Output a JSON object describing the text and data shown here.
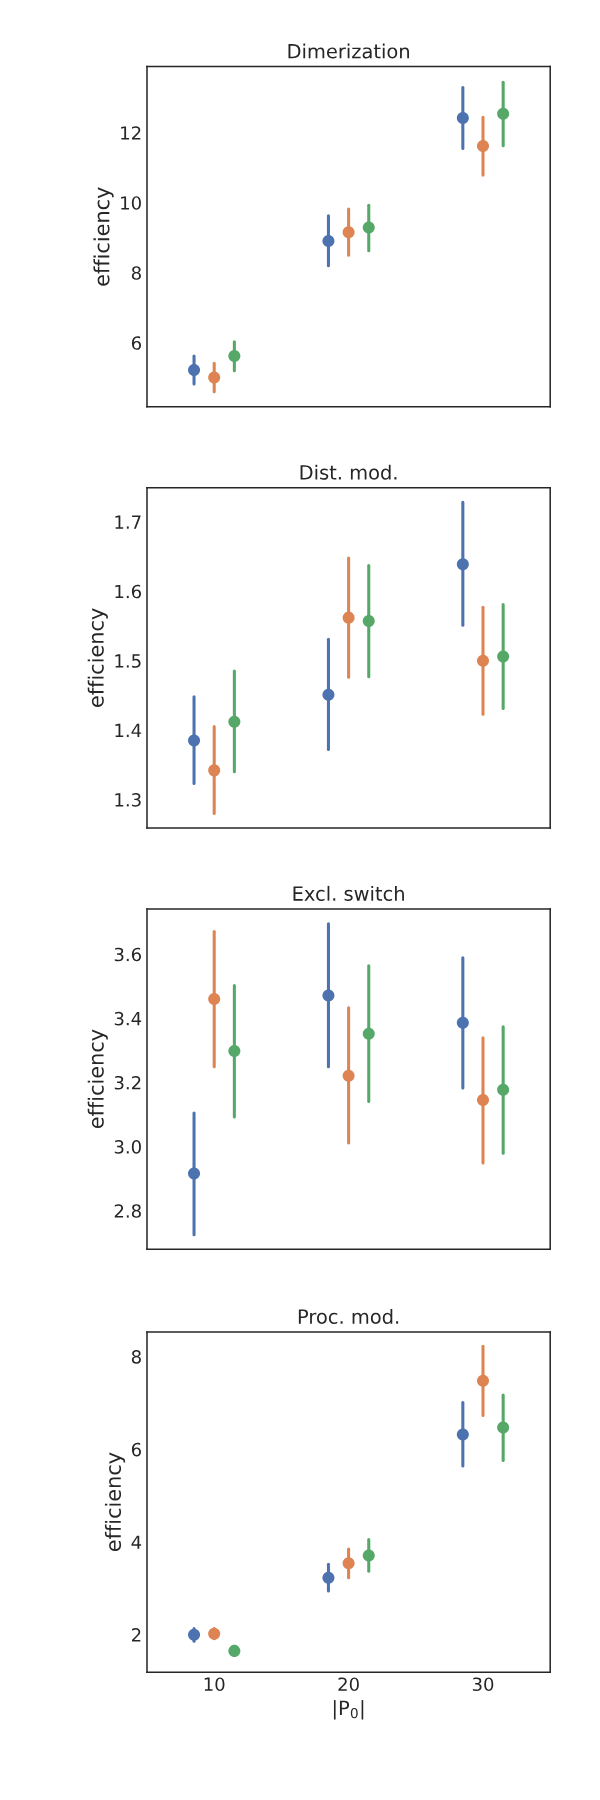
{
  "chart_data": [
    {
      "type": "scatter",
      "title": "Dimerization",
      "ylabel": "efficiency",
      "categories": [
        "10",
        "20",
        "30"
      ],
      "ylim": [
        4.17,
        13.89
      ],
      "yticks": [
        6,
        8,
        10,
        12
      ],
      "tick_labels": "y",
      "marker": "circle",
      "grid": false,
      "legend": false,
      "series": [
        {
          "color": "#4c72b0",
          "values": [
            5.22,
            8.91,
            12.42
          ],
          "errors": [
            [
              4.82,
              5.62
            ],
            [
              8.2,
              9.63
            ],
            [
              11.55,
              13.29
            ]
          ]
        },
        {
          "color": "#dd8452",
          "values": [
            5.01,
            9.16,
            11.62
          ],
          "errors": [
            [
              4.6,
              5.41
            ],
            [
              8.5,
              9.82
            ],
            [
              10.79,
              12.44
            ]
          ]
        },
        {
          "color": "#55a868",
          "values": [
            5.62,
            9.29,
            12.54
          ],
          "errors": [
            [
              5.2,
              6.03
            ],
            [
              8.63,
              9.93
            ],
            [
              11.63,
              13.44
            ]
          ]
        }
      ]
    },
    {
      "type": "scatter",
      "title": "Dist. mod.",
      "ylabel": "efficiency",
      "categories": [
        "10",
        "20",
        "30"
      ],
      "ylim": [
        1.259,
        1.749
      ],
      "yticks": [
        1.3,
        1.4,
        1.5,
        1.6,
        1.7
      ],
      "tick_labels": "y",
      "marker": "circle",
      "grid": false,
      "legend": false,
      "series": [
        {
          "color": "#4c72b0",
          "values": [
            1.385,
            1.451,
            1.639
          ],
          "errors": [
            [
              1.323,
              1.448
            ],
            [
              1.372,
              1.531
            ],
            [
              1.551,
              1.728
            ]
          ]
        },
        {
          "color": "#dd8452",
          "values": [
            1.342,
            1.562,
            1.5
          ],
          "errors": [
            [
              1.28,
              1.405
            ],
            [
              1.476,
              1.648
            ],
            [
              1.423,
              1.577
            ]
          ]
        },
        {
          "color": "#55a868",
          "values": [
            1.412,
            1.557,
            1.506
          ],
          "errors": [
            [
              1.34,
              1.485
            ],
            [
              1.477,
              1.637
            ],
            [
              1.431,
              1.581
            ]
          ]
        }
      ]
    },
    {
      "type": "scatter",
      "title": "Excl. switch",
      "ylabel": "efficiency",
      "categories": [
        "10",
        "20",
        "30"
      ],
      "ylim": [
        2.68,
        3.741
      ],
      "yticks": [
        2.8,
        {
          "value": 3.0,
          "label": "3.0"
        },
        3.2,
        3.4,
        3.6
      ],
      "tick_labels": "y",
      "marker": "circle",
      "grid": false,
      "legend": false,
      "series": [
        {
          "color": "#4c72b0",
          "values": [
            2.916,
            3.471,
            3.386
          ],
          "errors": [
            [
              2.725,
              3.105
            ],
            [
              3.249,
              3.695
            ],
            [
              3.183,
              3.589
            ]
          ]
        },
        {
          "color": "#dd8452",
          "values": [
            3.46,
            3.221,
            3.145
          ],
          "errors": [
            [
              3.249,
              3.671
            ],
            [
              3.011,
              3.433
            ],
            [
              2.949,
              3.339
            ]
          ]
        },
        {
          "color": "#55a868",
          "values": [
            3.298,
            3.352,
            3.177
          ],
          "errors": [
            [
              3.092,
              3.502
            ],
            [
              3.141,
              3.564
            ],
            [
              2.979,
              3.374
            ]
          ]
        }
      ]
    },
    {
      "type": "scatter",
      "title": "Proc. mod.",
      "ylabel": "efficiency",
      "xlabel": "|P$_{0}$|",
      "categories": [
        "10",
        "20",
        "30"
      ],
      "ylim": [
        1.19,
        8.53
      ],
      "yticks": [
        2,
        4,
        6,
        8
      ],
      "marker": "circle",
      "grid": false,
      "legend": false,
      "series": [
        {
          "color": "#4c72b0",
          "values": [
            2.0,
            3.23,
            6.32
          ],
          "errors": [
            [
              1.86,
              2.13
            ],
            [
              2.94,
              3.52
            ],
            [
              5.64,
              7.01
            ]
          ]
        },
        {
          "color": "#dd8452",
          "values": [
            2.02,
            3.54,
            7.48
          ],
          "errors": [
            [
              1.91,
              2.13
            ],
            [
              3.23,
              3.85
            ],
            [
              6.73,
              8.22
            ]
          ]
        },
        {
          "color": "#55a868",
          "values": [
            1.65,
            3.71,
            6.47
          ],
          "errors": [
            [
              1.62,
              1.68
            ],
            [
              3.37,
              4.05
            ],
            [
              5.76,
              7.17
            ]
          ]
        }
      ]
    }
  ]
}
